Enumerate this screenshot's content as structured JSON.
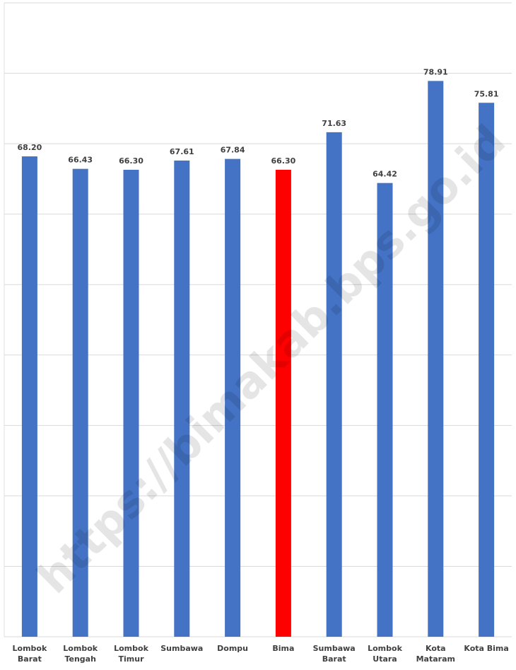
{
  "chart_data": {
    "type": "bar",
    "categories": [
      "Lombok Barat",
      "Lombok Tengah",
      "Lombok Timur",
      "Sumbawa",
      "Dompu",
      "Bima",
      "Sumbawa Barat",
      "Lombok Utara",
      "Kota Mataram",
      "Kota Bima"
    ],
    "values": [
      68.2,
      66.43,
      66.3,
      67.61,
      67.84,
      66.3,
      71.63,
      64.42,
      78.91,
      75.81
    ],
    "value_labels": [
      "68.20",
      "66.43",
      "66.30",
      "67.61",
      "67.84",
      "66.30",
      "71.63",
      "64.42",
      "78.91",
      "75.81"
    ],
    "colors": [
      "#4472c4",
      "#4472c4",
      "#4472c4",
      "#4472c4",
      "#4472c4",
      "#ff0000",
      "#4472c4",
      "#4472c4",
      "#4472c4",
      "#4472c4"
    ],
    "ylim": [
      0,
      90
    ],
    "yticks": [
      0,
      10,
      20,
      30,
      40,
      50,
      60,
      70,
      80,
      90
    ],
    "grid": true,
    "watermark": "https://bimakab.bps.go.id"
  }
}
